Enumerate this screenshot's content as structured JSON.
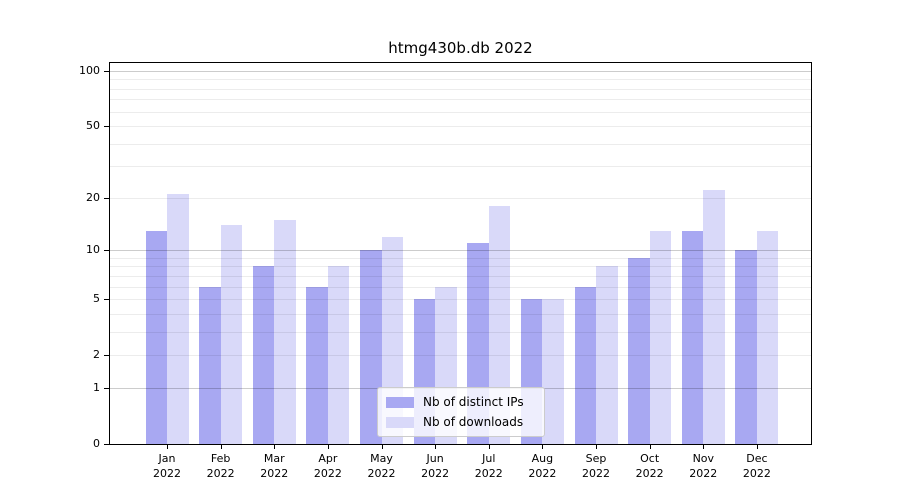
{
  "chart_data": {
    "type": "bar",
    "title": "htmg430b.db 2022",
    "scale": "log1p",
    "grid": true,
    "legend_position": "lower center",
    "categories": [
      "Jan",
      "Feb",
      "Mar",
      "Apr",
      "May",
      "Jun",
      "Jul",
      "Aug",
      "Sep",
      "Oct",
      "Nov",
      "Dec"
    ],
    "year_label": "2022",
    "series": [
      {
        "name": "Nb of distinct IPs",
        "color": "#a8a8f2",
        "values": [
          13,
          6,
          8,
          6,
          10,
          5,
          11,
          5,
          6,
          9,
          13,
          10
        ]
      },
      {
        "name": "Nb of downloads",
        "color": "#d9d9f9",
        "values": [
          21,
          14,
          15,
          8,
          12,
          6,
          18,
          5,
          8,
          13,
          22,
          13
        ]
      }
    ],
    "yticks": [
      0,
      1,
      2,
      5,
      10,
      20,
      50,
      100
    ],
    "minor_gridlines": [
      2,
      3,
      4,
      5,
      6,
      7,
      8,
      9,
      20,
      30,
      40,
      50,
      60,
      70,
      80,
      90
    ],
    "major_gridlines": [
      1,
      10,
      100
    ],
    "ylim": [
      0,
      110
    ],
    "colors": {
      "frame": "#000000",
      "minor_grid": "rgba(0,0,0,0.075)",
      "major_grid": "rgba(0,0,0,0.20)"
    }
  }
}
